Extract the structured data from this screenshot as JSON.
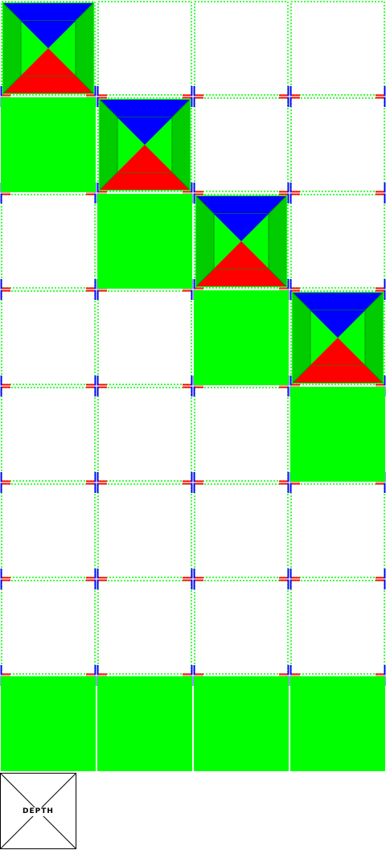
{
  "grid": {
    "columns": 4,
    "rows": 8,
    "stair_heights": [
      1,
      2,
      3,
      4
    ],
    "colors": {
      "block": "#00ff00",
      "cap_top": "#0000ff",
      "cap_bottom": "#ff0000",
      "cap_side": "#00cc00",
      "outline": "#00ff00",
      "cross_red": "#ff0000",
      "cross_blue": "#0000ff",
      "cross_white": "#ffffff"
    }
  },
  "legend": {
    "label": "DEPTH",
    "icon": "x-box-icon"
  }
}
